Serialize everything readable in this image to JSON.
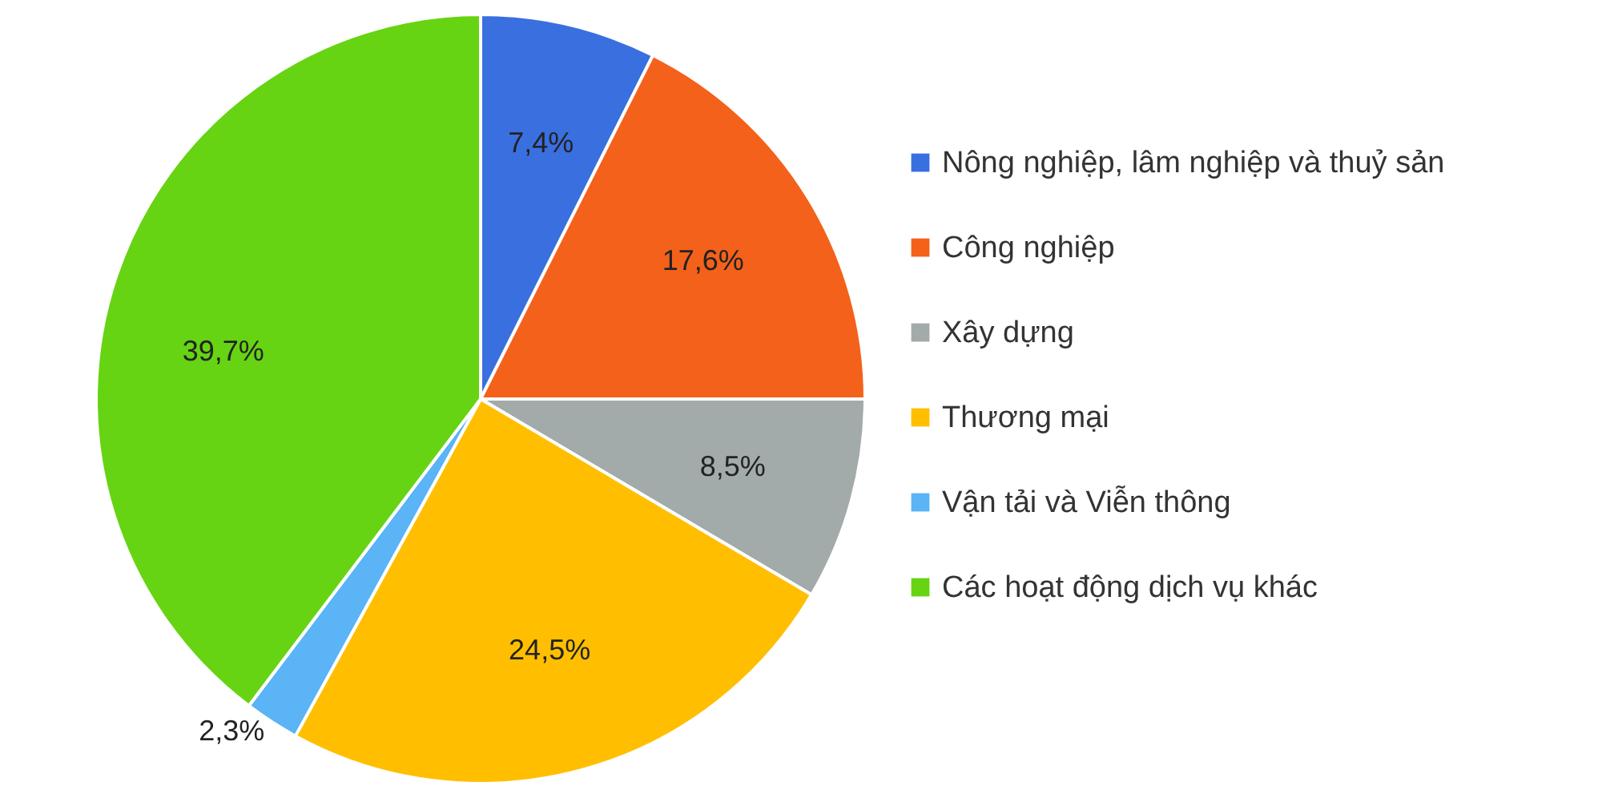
{
  "chart_data": {
    "type": "pie",
    "categories": [
      "Nông nghiệp, lâm nghiệp và thuỷ sản",
      "Công nghiệp",
      "Xây dựng",
      "Thương mại",
      "Vận tải và Viễn thông",
      "Các hoạt động dịch vụ khác"
    ],
    "values": [
      7.4,
      17.6,
      8.5,
      24.5,
      2.3,
      39.7
    ],
    "colors": [
      "#3a6fe0",
      "#f4611a",
      "#a3aaaa",
      "#ffbf00",
      "#5ab4f5",
      "#66d412"
    ],
    "value_labels": [
      "7,4%",
      "17,6%",
      "8,5%",
      "24,5%",
      "2,3%",
      "39,7%"
    ],
    "legend": "right"
  }
}
